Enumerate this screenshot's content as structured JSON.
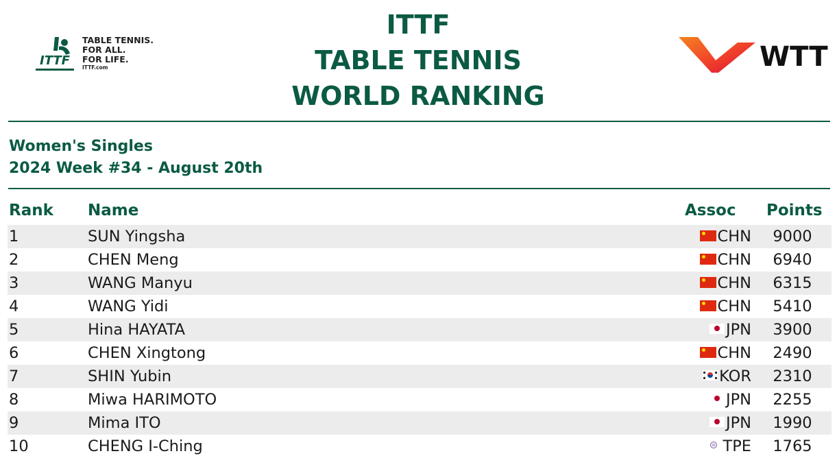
{
  "header": {
    "itf_logo": {
      "line1": "TABLE TENNIS.",
      "line2": "FOR ALL.",
      "line3": "FOR LIFE.",
      "url": "ITTF.com",
      "mark_text": "ITTF"
    },
    "title_line1": "ITTF",
    "title_line2": "TABLE TENNIS",
    "title_line3": "WORLD RANKING",
    "wtt_logo_text": "WTT"
  },
  "subtitle": {
    "event": "Women's Singles",
    "week": "2024 Week #34 - August 20th"
  },
  "table": {
    "headers": {
      "rank": "Rank",
      "name": "Name",
      "assoc": "Assoc",
      "points": "Points"
    },
    "rows": [
      {
        "rank": "1",
        "name": "SUN Yingsha",
        "assoc": "CHN",
        "flag": "china-flag-icon",
        "points": "9000"
      },
      {
        "rank": "2",
        "name": "CHEN Meng",
        "assoc": "CHN",
        "flag": "china-flag-icon",
        "points": "6940"
      },
      {
        "rank": "3",
        "name": "WANG Manyu",
        "assoc": "CHN",
        "flag": "china-flag-icon",
        "points": "6315"
      },
      {
        "rank": "4",
        "name": "WANG Yidi",
        "assoc": "CHN",
        "flag": "china-flag-icon",
        "points": "5410"
      },
      {
        "rank": "5",
        "name": "Hina HAYATA",
        "assoc": "JPN",
        "flag": "japan-flag-icon",
        "points": "3900"
      },
      {
        "rank": "6",
        "name": "CHEN Xingtong",
        "assoc": "CHN",
        "flag": "china-flag-icon",
        "points": "2490"
      },
      {
        "rank": "7",
        "name": "SHIN Yubin",
        "assoc": "KOR",
        "flag": "korea-flag-icon",
        "points": "2310"
      },
      {
        "rank": "8",
        "name": "Miwa HARIMOTO",
        "assoc": "JPN",
        "flag": "japan-flag-icon",
        "points": "2255"
      },
      {
        "rank": "9",
        "name": "Mima ITO",
        "assoc": "JPN",
        "flag": "japan-flag-icon",
        "points": "1990"
      },
      {
        "rank": "10",
        "name": "CHENG I-Ching",
        "assoc": "TPE",
        "flag": "chinese-taipei-flag-icon",
        "points": "1765"
      }
    ]
  },
  "colors": {
    "brand_green": "#0b5a44",
    "row_alt": "#ececec",
    "wtt_orange": "#f26522",
    "wtt_red": "#e0103a"
  }
}
